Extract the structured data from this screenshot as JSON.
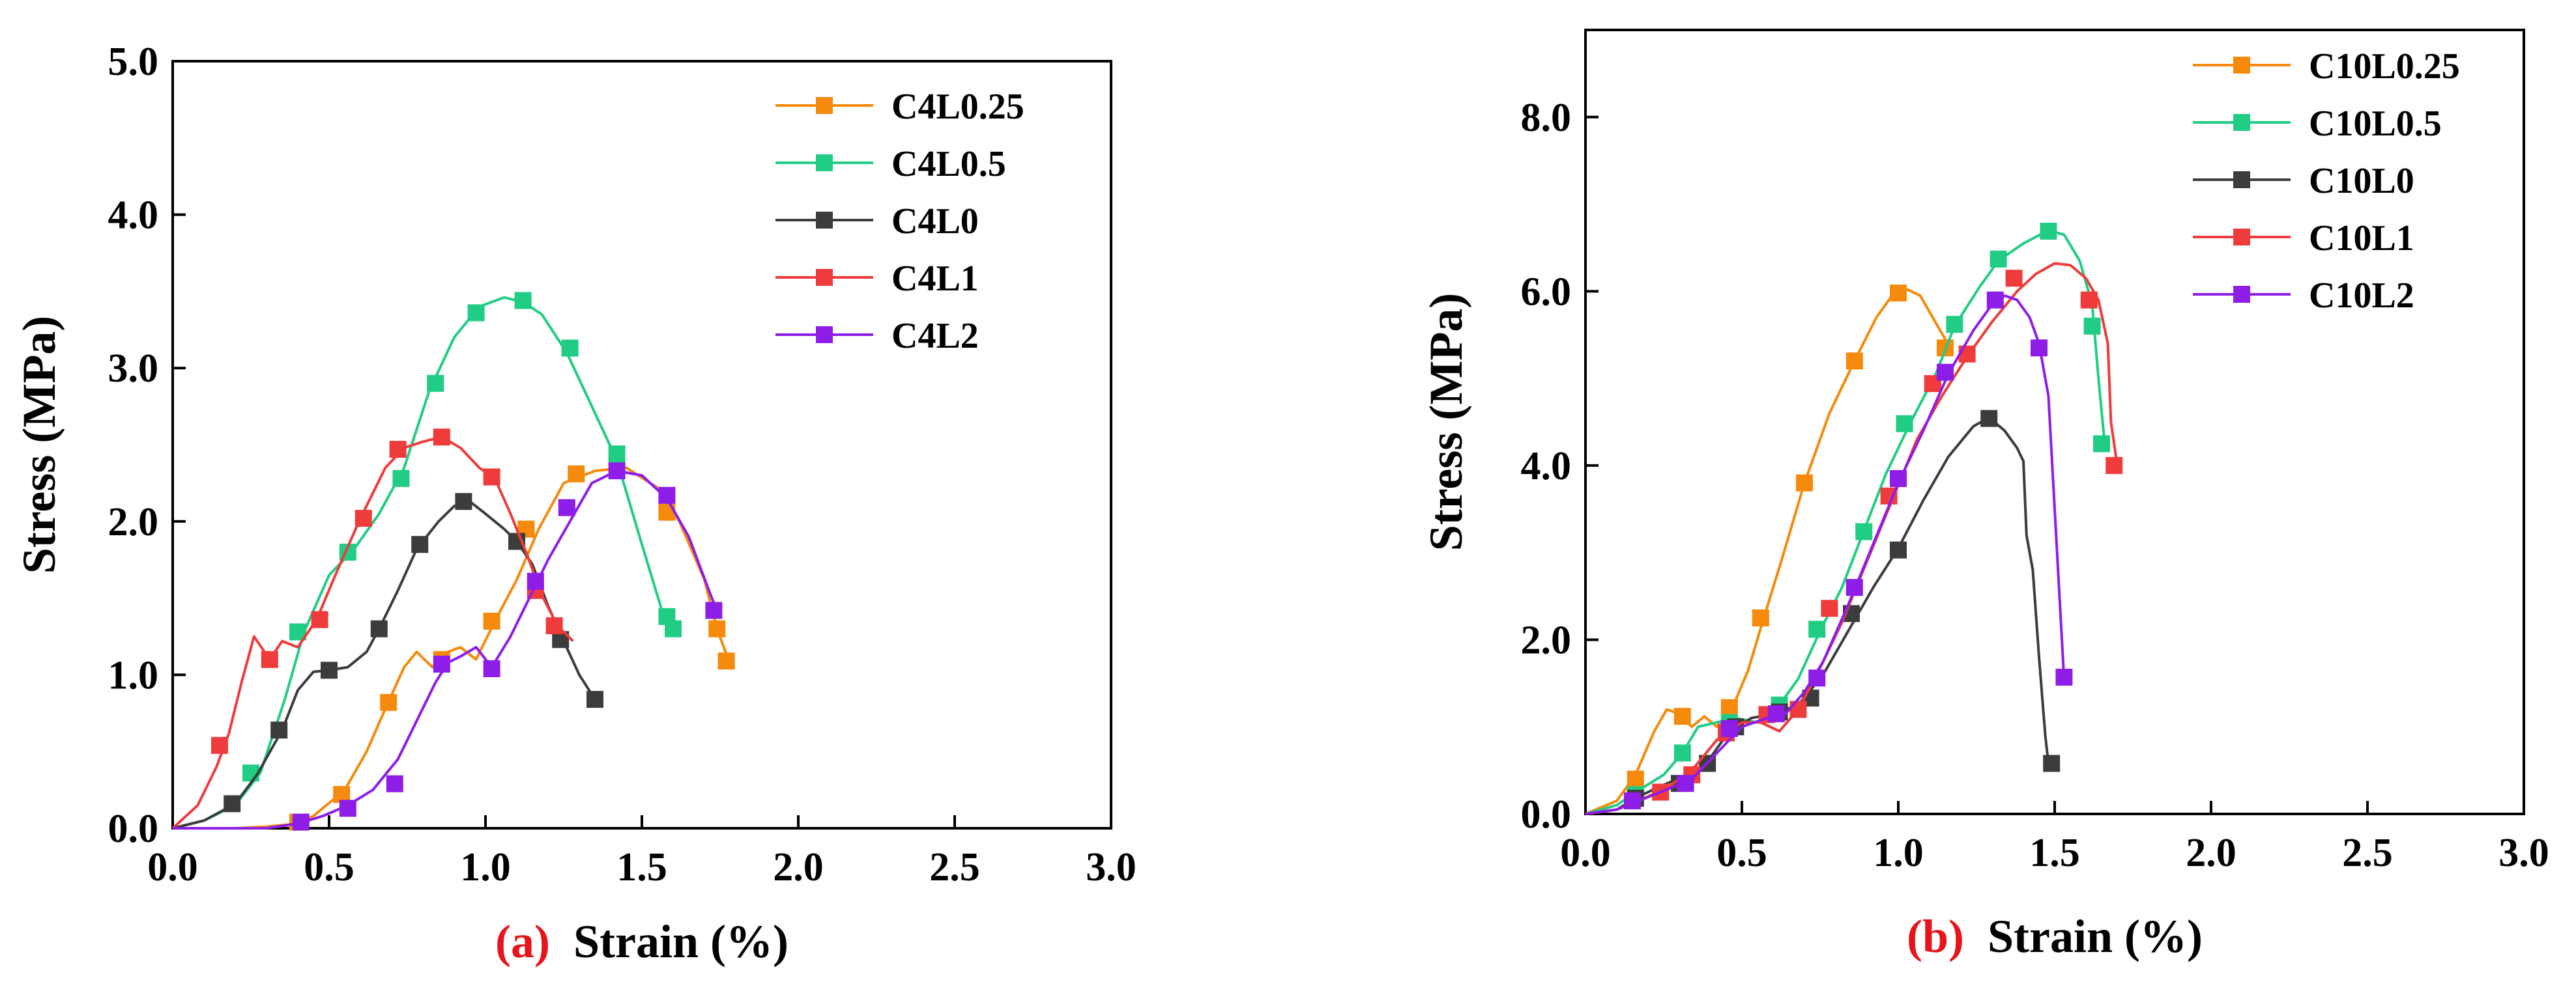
{
  "chart_data": [
    {
      "type": "line",
      "panel_label": "(a)",
      "xlabel": "Strain (%)",
      "ylabel": "Stress (MPa)",
      "xlim": [
        0.0,
        3.0
      ],
      "ylim": [
        0.0,
        5.0
      ],
      "x_ticks": [
        "0.0",
        "0.5",
        "1.0",
        "1.5",
        "2.0",
        "2.5",
        "3.0"
      ],
      "y_ticks": [
        "0.0",
        "1.0",
        "2.0",
        "3.0",
        "4.0",
        "5.0"
      ],
      "x_tick_values": [
        0,
        0.5,
        1.0,
        1.5,
        2.0,
        2.5,
        3.0
      ],
      "y_tick_values": [
        0,
        1,
        2,
        3,
        4,
        5
      ],
      "legend_position": "top-right",
      "series": [
        {
          "name": "C4L0.25",
          "color": "#f58a0c",
          "x": [
            0.0,
            0.2,
            0.3,
            0.4,
            0.45,
            0.55,
            0.62,
            0.68,
            0.74,
            0.78,
            0.83,
            0.88,
            0.92,
            0.97,
            1.03,
            1.1,
            1.17,
            1.25,
            1.35,
            1.45,
            1.55,
            1.62,
            1.7,
            1.74,
            1.78
          ],
          "y": [
            0.0,
            0.0,
            0.01,
            0.03,
            0.08,
            0.25,
            0.5,
            0.78,
            1.05,
            1.15,
            1.05,
            1.15,
            1.18,
            1.1,
            1.35,
            1.62,
            1.95,
            2.25,
            2.33,
            2.35,
            2.22,
            2.0,
            1.62,
            1.3,
            1.08
          ],
          "markers_x": [
            0.4,
            0.54,
            0.69,
            0.86,
            1.02,
            1.13,
            1.29,
            1.58,
            1.74,
            1.77
          ],
          "markers_y": [
            0.04,
            0.22,
            0.82,
            1.1,
            1.35,
            1.95,
            2.31,
            2.06,
            1.3,
            1.09
          ]
        },
        {
          "name": "C4L0.5",
          "color": "#21cd84",
          "x": [
            0.0,
            0.1,
            0.2,
            0.28,
            0.36,
            0.42,
            0.5,
            0.58,
            0.66,
            0.74,
            0.82,
            0.9,
            0.98,
            1.06,
            1.12,
            1.18,
            1.26,
            1.34,
            1.42,
            1.5,
            1.57,
            1.6
          ],
          "y": [
            0.0,
            0.05,
            0.15,
            0.36,
            0.85,
            1.28,
            1.65,
            1.82,
            2.05,
            2.35,
            2.85,
            3.2,
            3.4,
            3.46,
            3.43,
            3.35,
            3.1,
            2.75,
            2.4,
            1.85,
            1.38,
            1.3
          ],
          "markers_x": [
            0.25,
            0.4,
            0.56,
            0.73,
            0.84,
            0.97,
            1.12,
            1.27,
            1.42,
            1.58,
            1.6
          ],
          "markers_y": [
            0.36,
            1.28,
            1.8,
            2.28,
            2.9,
            3.36,
            3.44,
            3.13,
            2.44,
            1.38,
            1.3
          ]
        },
        {
          "name": "C4L0",
          "color": "#3c3c3c",
          "x": [
            0.0,
            0.1,
            0.2,
            0.27,
            0.35,
            0.4,
            0.45,
            0.5,
            0.56,
            0.62,
            0.66,
            0.72,
            0.78,
            0.85,
            0.9,
            0.95,
            1.0,
            1.06,
            1.1,
            1.15,
            1.2,
            1.25,
            1.3,
            1.35
          ],
          "y": [
            0.0,
            0.05,
            0.16,
            0.35,
            0.64,
            0.9,
            1.02,
            1.03,
            1.05,
            1.15,
            1.3,
            1.55,
            1.82,
            2.0,
            2.1,
            2.13,
            2.05,
            1.95,
            1.87,
            1.72,
            1.45,
            1.22,
            1.0,
            0.84
          ],
          "markers_x": [
            0.19,
            0.34,
            0.5,
            0.66,
            0.79,
            0.93,
            1.1,
            1.24,
            1.35
          ],
          "markers_y": [
            0.16,
            0.64,
            1.03,
            1.3,
            1.85,
            2.13,
            1.87,
            1.23,
            0.84
          ],
          "markers_x_note": "",
          "markers_y_note": ""
        },
        {
          "name": "C4L1",
          "color": "#ef3b3b",
          "x": [
            0.0,
            0.08,
            0.14,
            0.18,
            0.22,
            0.26,
            0.31,
            0.35,
            0.4,
            0.46,
            0.52,
            0.6,
            0.68,
            0.74,
            0.8,
            0.86,
            0.92,
            0.98,
            1.03,
            1.08,
            1.13,
            1.18,
            1.23,
            1.28
          ],
          "y": [
            0.0,
            0.15,
            0.4,
            0.62,
            0.95,
            1.25,
            1.1,
            1.22,
            1.18,
            1.36,
            1.65,
            2.02,
            2.35,
            2.48,
            2.52,
            2.55,
            2.48,
            2.35,
            2.28,
            2.05,
            1.8,
            1.52,
            1.32,
            1.22
          ],
          "markers_x": [
            0.15,
            0.31,
            0.47,
            0.61,
            0.72,
            0.86,
            1.02,
            1.16,
            1.22
          ],
          "markers_y": [
            0.54,
            1.1,
            1.36,
            2.02,
            2.47,
            2.55,
            2.29,
            1.55,
            1.32
          ]
        },
        {
          "name": "C4L2",
          "color": "#8e1de8",
          "x": [
            0.0,
            0.3,
            0.4,
            0.48,
            0.56,
            0.64,
            0.72,
            0.78,
            0.84,
            0.88,
            0.92,
            0.97,
            1.02,
            1.08,
            1.14,
            1.2,
            1.27,
            1.34,
            1.42,
            1.5,
            1.58,
            1.65,
            1.72,
            1.74
          ],
          "y": [
            0.0,
            0.0,
            0.03,
            0.08,
            0.15,
            0.25,
            0.45,
            0.7,
            0.95,
            1.08,
            1.12,
            1.18,
            1.05,
            1.25,
            1.5,
            1.75,
            2.0,
            2.25,
            2.33,
            2.3,
            2.15,
            1.9,
            1.52,
            1.42
          ],
          "markers_x": [
            0.41,
            0.56,
            0.71,
            0.86,
            1.02,
            1.16,
            1.26,
            1.42,
            1.58,
            1.73
          ],
          "markers_y": [
            0.04,
            0.13,
            0.29,
            1.07,
            1.04,
            1.61,
            2.09,
            2.33,
            2.17,
            1.42
          ]
        }
      ]
    },
    {
      "type": "line",
      "panel_label": "(b)",
      "xlabel": "Strain (%)",
      "ylabel": "Stress (MPa)",
      "xlim": [
        0.0,
        3.0
      ],
      "ylim": [
        0.0,
        9.0
      ],
      "x_ticks": [
        "0.0",
        "0.5",
        "1.0",
        "1.5",
        "2.0",
        "2.5",
        "3.0"
      ],
      "y_ticks": [
        "0.0",
        "2.0",
        "4.0",
        "6.0",
        "8.0"
      ],
      "x_tick_values": [
        0,
        0.5,
        1.0,
        1.5,
        2.0,
        2.5,
        3.0
      ],
      "y_tick_values": [
        0,
        2,
        4,
        6,
        8
      ],
      "legend_position": "top-right",
      "series": [
        {
          "name": "C10L0.25",
          "color": "#f58a0c",
          "x": [
            0.0,
            0.1,
            0.16,
            0.22,
            0.26,
            0.3,
            0.34,
            0.38,
            0.42,
            0.47,
            0.52,
            0.57,
            0.63,
            0.7,
            0.78,
            0.86,
            0.93,
            0.98,
            1.03,
            1.07,
            1.11,
            1.15,
            1.17
          ],
          "y": [
            0.0,
            0.15,
            0.45,
            0.95,
            1.2,
            1.15,
            1.0,
            1.12,
            1.0,
            1.22,
            1.65,
            2.25,
            2.95,
            3.8,
            4.6,
            5.2,
            5.7,
            5.95,
            6.02,
            5.95,
            5.7,
            5.45,
            5.35
          ],
          "markers_x": [
            0.16,
            0.31,
            0.46,
            0.56,
            0.7,
            0.86,
            1.0,
            1.15
          ],
          "markers_y": [
            0.4,
            1.12,
            1.22,
            2.25,
            3.8,
            5.2,
            5.98,
            5.35
          ]
        },
        {
          "name": "C10L0.5",
          "color": "#21cd84",
          "x": [
            0.0,
            0.1,
            0.16,
            0.25,
            0.31,
            0.36,
            0.42,
            0.48,
            0.55,
            0.62,
            0.68,
            0.75,
            0.82,
            0.89,
            0.96,
            1.04,
            1.12,
            1.18,
            1.26,
            1.32,
            1.4,
            1.48,
            1.53,
            1.58,
            1.62,
            1.64,
            1.66
          ],
          "y": [
            0.0,
            0.1,
            0.25,
            0.45,
            0.7,
            1.0,
            1.05,
            1.1,
            1.05,
            1.25,
            1.55,
            2.1,
            2.6,
            3.25,
            3.9,
            4.5,
            5.05,
            5.6,
            6.05,
            6.35,
            6.55,
            6.7,
            6.65,
            6.35,
            5.85,
            5.0,
            4.25
          ],
          "markers_x": [
            0.16,
            0.31,
            0.46,
            0.62,
            0.74,
            0.89,
            1.02,
            1.18,
            1.32,
            1.48,
            1.62,
            1.65
          ],
          "markers_y": [
            0.22,
            0.7,
            1.05,
            1.25,
            2.12,
            3.24,
            4.48,
            5.62,
            6.37,
            6.69,
            5.6,
            4.25
          ]
        },
        {
          "name": "C10L0",
          "color": "#3c3c3c",
          "x": [
            0.0,
            0.1,
            0.17,
            0.26,
            0.33,
            0.39,
            0.46,
            0.53,
            0.6,
            0.68,
            0.76,
            0.84,
            0.92,
            1.0,
            1.08,
            1.16,
            1.24,
            1.29,
            1.34,
            1.38,
            1.4,
            1.41,
            1.43,
            1.45,
            1.47,
            1.48
          ],
          "y": [
            0.0,
            0.05,
            0.2,
            0.35,
            0.45,
            0.6,
            0.95,
            1.1,
            1.15,
            1.25,
            1.6,
            2.1,
            2.6,
            3.05,
            3.6,
            4.1,
            4.45,
            4.55,
            4.4,
            4.2,
            4.05,
            3.2,
            2.8,
            1.8,
            0.9,
            0.58
          ],
          "markers_x": [
            0.16,
            0.3,
            0.39,
            0.48,
            0.62,
            0.72,
            0.85,
            1.0,
            1.29,
            1.49
          ],
          "markers_y": [
            0.18,
            0.35,
            0.58,
            1.0,
            1.17,
            1.33,
            2.3,
            3.03,
            4.54,
            0.58
          ]
        },
        {
          "name": "C10L1",
          "color": "#ef3b3b",
          "x": [
            0.0,
            0.1,
            0.17,
            0.26,
            0.34,
            0.42,
            0.5,
            0.56,
            0.62,
            0.68,
            0.74,
            0.82,
            0.9,
            0.98,
            1.06,
            1.14,
            1.22,
            1.3,
            1.38,
            1.44,
            1.5,
            1.55,
            1.6,
            1.64,
            1.67,
            1.68,
            1.7
          ],
          "y": [
            0.0,
            0.05,
            0.15,
            0.3,
            0.5,
            0.85,
            1.05,
            1.05,
            0.95,
            1.2,
            1.6,
            2.2,
            2.9,
            3.6,
            4.3,
            4.8,
            5.25,
            5.65,
            6.0,
            6.2,
            6.32,
            6.3,
            6.15,
            5.9,
            5.4,
            4.5,
            4.0
          ],
          "markers_x": [
            0.24,
            0.34,
            0.45,
            0.58,
            0.68,
            0.78,
            0.97,
            1.11,
            1.22,
            1.37,
            1.61,
            1.69
          ],
          "markers_y": [
            0.25,
            0.45,
            0.93,
            1.14,
            1.2,
            2.36,
            3.65,
            4.94,
            5.28,
            6.15,
            5.9,
            4.0
          ]
        },
        {
          "name": "C10L2",
          "color": "#8e1de8",
          "x": [
            0.0,
            0.1,
            0.17,
            0.26,
            0.34,
            0.42,
            0.5,
            0.58,
            0.64,
            0.7,
            0.76,
            0.84,
            0.92,
            1.0,
            1.08,
            1.16,
            1.24,
            1.3,
            1.34,
            1.38,
            1.42,
            1.45,
            1.48,
            1.5,
            1.52,
            1.53
          ],
          "y": [
            0.0,
            0.05,
            0.15,
            0.28,
            0.4,
            0.7,
            1.0,
            1.1,
            1.15,
            1.4,
            1.75,
            2.4,
            3.1,
            3.8,
            4.4,
            5.05,
            5.55,
            5.85,
            5.95,
            5.9,
            5.7,
            5.4,
            4.8,
            3.5,
            2.2,
            1.55
          ],
          "markers_x": [
            0.15,
            0.32,
            0.46,
            0.61,
            0.74,
            0.86,
            1.0,
            1.15,
            1.31,
            1.45,
            1.53
          ],
          "markers_y": [
            0.15,
            0.35,
            0.98,
            1.15,
            1.56,
            2.6,
            3.85,
            5.07,
            5.9,
            5.35,
            1.57
          ]
        }
      ]
    }
  ]
}
